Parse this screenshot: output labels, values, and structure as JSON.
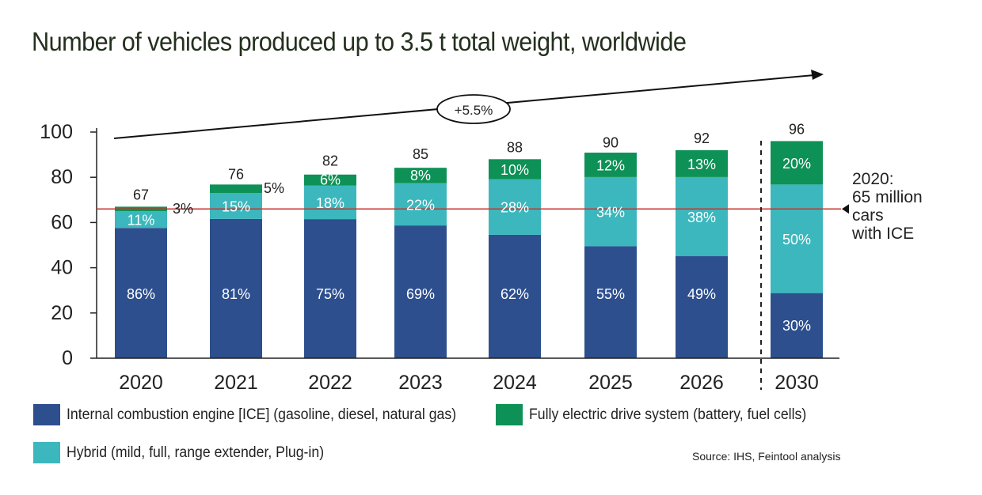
{
  "chart_data": {
    "type": "bar",
    "title": "Number of vehicles produced up to 3.5 t total weight, worldwide",
    "categories": [
      "2020",
      "2021",
      "2022",
      "2023",
      "2024",
      "2025",
      "2026",
      "2030"
    ],
    "totals": [
      67,
      76,
      82,
      85,
      88,
      90,
      92,
      96
    ],
    "total_labels": [
      "67",
      "76",
      "82",
      "85",
      "88",
      "90",
      "92",
      "96"
    ],
    "series": [
      {
        "name": "Internal combustion engine [ICE] (gasoline, diesel, natural gas)",
        "color": "#2d4f8e",
        "values": [
          57.6,
          61.6,
          61.5,
          58.7,
          54.6,
          49.5,
          45.1,
          28.8
        ],
        "labels": [
          "86%",
          "81%",
          "75%",
          "69%",
          "62%",
          "55%",
          "49%",
          "30%"
        ]
      },
      {
        "name": "Hybrid (mild, full, range extender, Plug-in)",
        "color": "#3bb7bd",
        "values": [
          7.4,
          11.4,
          14.8,
          18.7,
          24.6,
          30.6,
          35.0,
          48.0
        ],
        "labels": [
          "11%",
          "15%",
          "18%",
          "22%",
          "28%",
          "34%",
          "38%",
          "50%"
        ]
      },
      {
        "name": "Fully electric drive system (battery, fuel cells)",
        "color": "#0e9156",
        "values": [
          2.0,
          3.8,
          4.9,
          6.8,
          8.8,
          10.8,
          11.9,
          19.2
        ],
        "labels": [
          "3%",
          "5%",
          "6%",
          "8%",
          "10%",
          "12%",
          "13%",
          "20%"
        ]
      }
    ],
    "yaxis": {
      "min": 0,
      "max": 100,
      "ticks": [
        "0",
        "20",
        "40",
        "60",
        "80",
        "100"
      ]
    },
    "reference_line": {
      "value": 66,
      "color": "#c8322c",
      "annotation": [
        "2020:",
        "65 million",
        "cars",
        "with ICE"
      ]
    },
    "growth_label": "+5.5%",
    "grid": false,
    "legend_position": "bottom",
    "source": "Source: IHS, Feintool analysis"
  }
}
